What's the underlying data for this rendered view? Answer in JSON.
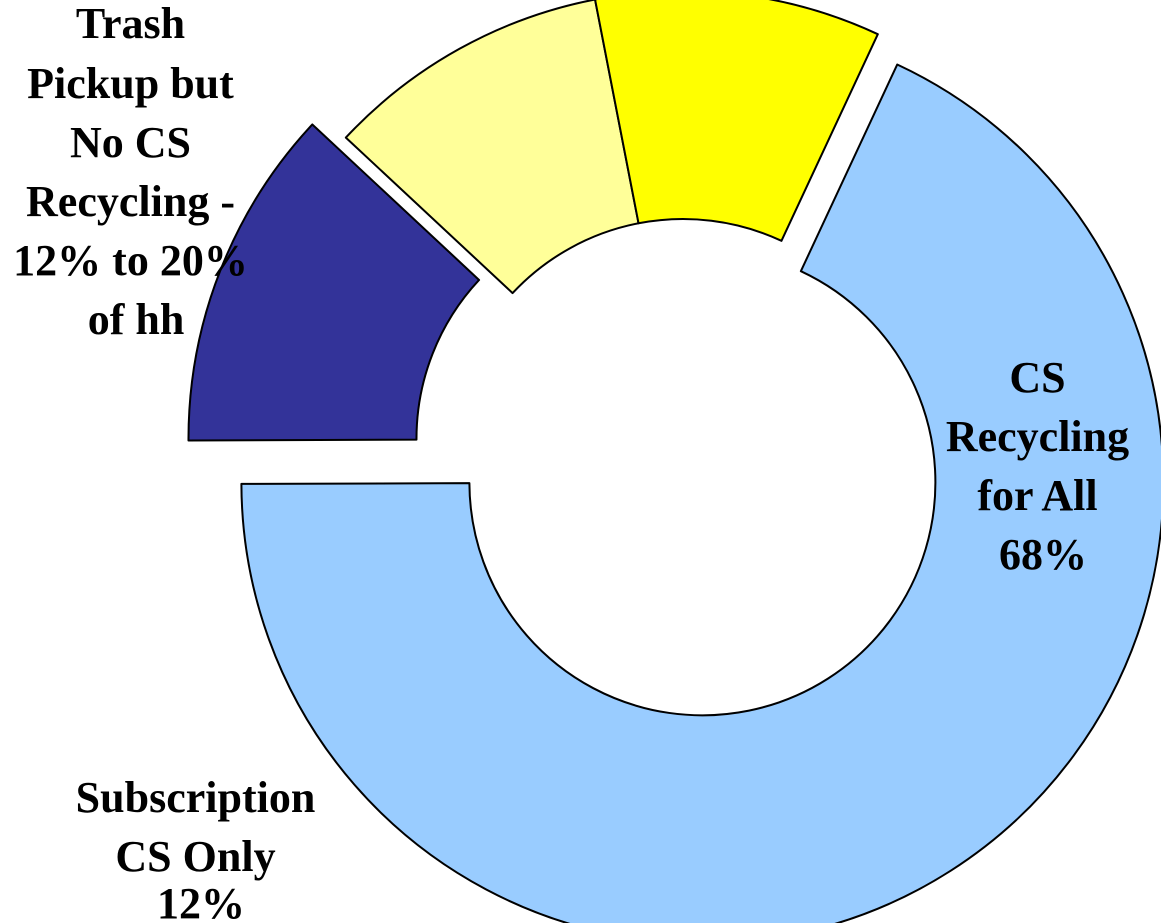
{
  "chart_data": {
    "type": "pie",
    "variant": "doughnut",
    "start_angle_deg": 25,
    "direction": "clockwise",
    "legend": "none",
    "slices": [
      {
        "label_lines": [
          "CS",
          "Recycling",
          "for All",
          "68%"
        ],
        "value": 68,
        "color": "#99ccff",
        "exploded": true
      },
      {
        "label_lines": [
          "Subscription",
          "CS Only",
          "12%"
        ],
        "value": 12,
        "color": "#333399",
        "exploded": true
      },
      {
        "label_lines": [],
        "value": 10,
        "color": "#ffff99",
        "exploded": false
      },
      {
        "label_lines": [],
        "value": 10,
        "color": "#ffff00",
        "exploded": false
      }
    ],
    "group_labels": [
      {
        "label_lines": [
          "Trash",
          "Pickup but",
          "No CS",
          "Recycling -",
          "12% to 20%",
          "of hh"
        ],
        "covers_slices": [
          2,
          3
        ]
      }
    ]
  }
}
